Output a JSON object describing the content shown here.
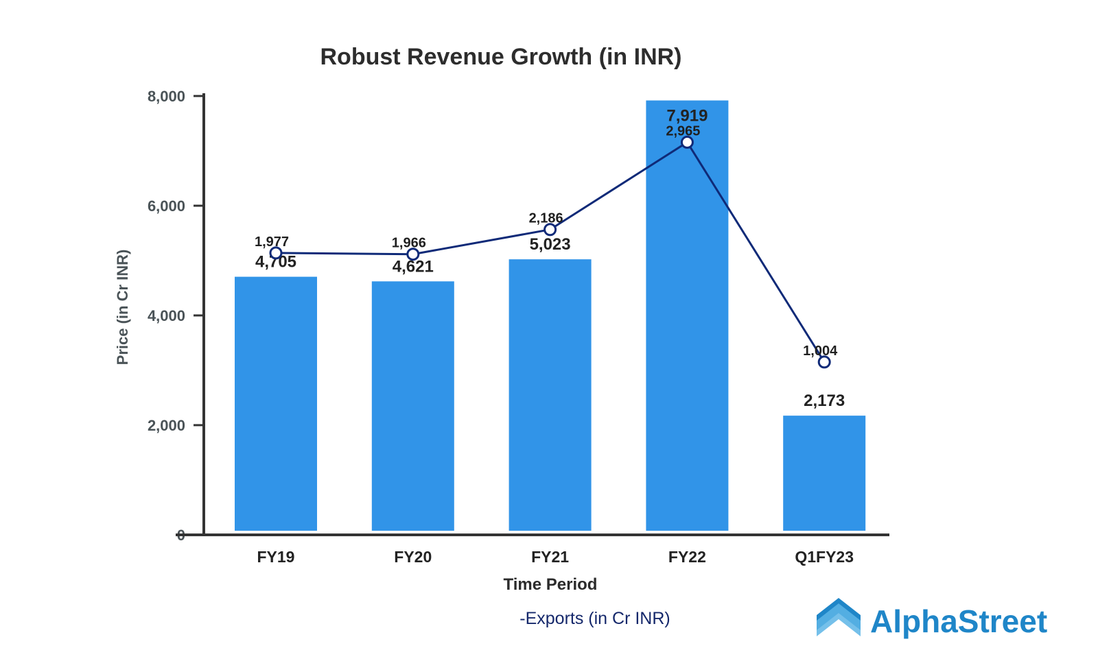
{
  "chart_data": {
    "type": "bar",
    "title": "Robust Revenue Growth (in INR)",
    "xlabel": "Time Period",
    "ylabel": "Price (in Cr INR)",
    "categories": [
      "FY19",
      "FY20",
      "FY21",
      "FY22",
      "Q1FY23"
    ],
    "ylim": [
      0,
      8000
    ],
    "yticks": [
      "0",
      "2,000",
      "4,000",
      "6,000",
      "8,000"
    ],
    "ytick_values": [
      0,
      2000,
      4000,
      6000,
      8000
    ],
    "grid": false,
    "series": [
      {
        "kind": "bar",
        "values": [
          4705,
          4621,
          5023,
          7919,
          2173
        ],
        "labels": [
          "4,705",
          "4,621",
          "5,023",
          "7,919",
          "2,173"
        ],
        "color": "#3194e8"
      },
      {
        "kind": "line",
        "name": "-Exports (in Cr INR)",
        "values": [
          1977,
          1966,
          2186,
          2965,
          1004
        ],
        "labels": [
          "1,977",
          "1,966",
          "2,186",
          "2,965",
          "1,004"
        ],
        "color": "#0f2a78",
        "note": "secondary series drawn on its own scale"
      }
    ],
    "legend": {
      "position": "bottom",
      "text": "-Exports (in Cr INR)"
    }
  },
  "brand": {
    "name": "AlphaStreet",
    "color": "#1f86c8",
    "icon": "house-chevron-logo"
  }
}
